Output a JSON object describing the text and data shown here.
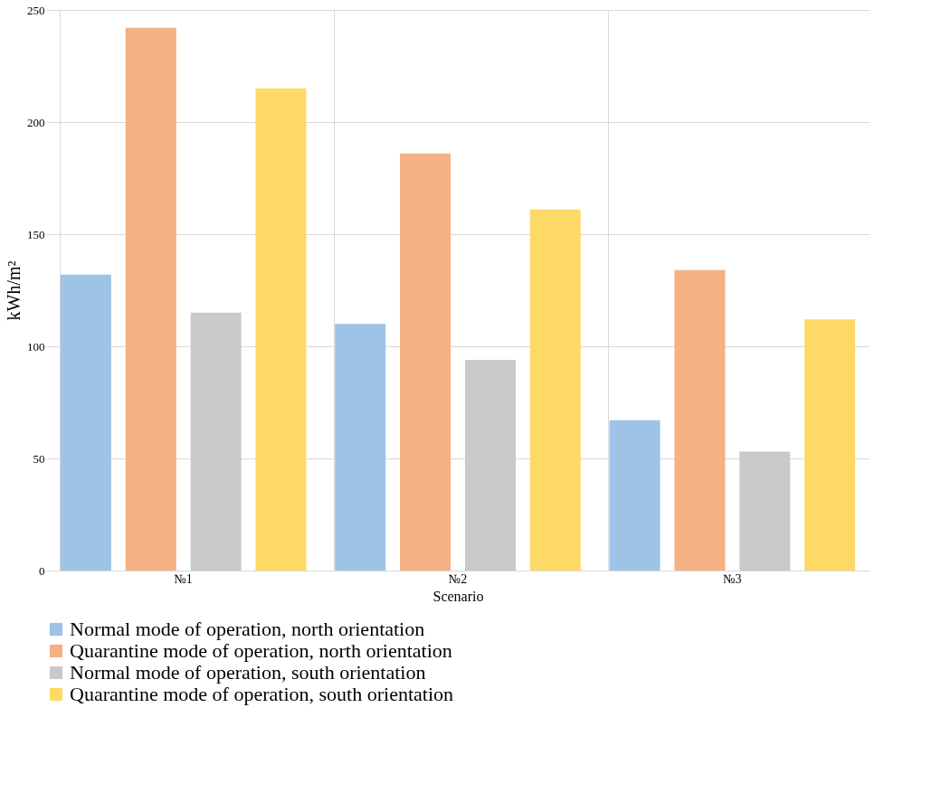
{
  "chart_data": {
    "type": "bar",
    "xlabel": "Scenario",
    "ylabel": "kWh/m²",
    "categories": [
      "№1",
      "№2",
      "№3"
    ],
    "series": [
      {
        "name": "Normal mode of operation, north orientation",
        "color": "#9dc3e6",
        "values": [
          132,
          110,
          67
        ]
      },
      {
        "name": "Quarantine mode of operation, north orientation",
        "color": "#f4b183",
        "values": [
          242,
          186,
          134
        ]
      },
      {
        "name": "Normal mode of operation, south orientation",
        "color": "#c9c9c9",
        "values": [
          115,
          94,
          53
        ]
      },
      {
        "name": "Quarantine mode of operation, south orientation",
        "color": "#ffd966",
        "values": [
          215,
          161,
          112
        ]
      }
    ],
    "ylim": [
      0,
      250
    ],
    "yticks": [
      0,
      50,
      100,
      150,
      200,
      250
    ],
    "grid": true,
    "legend": "bottom"
  }
}
